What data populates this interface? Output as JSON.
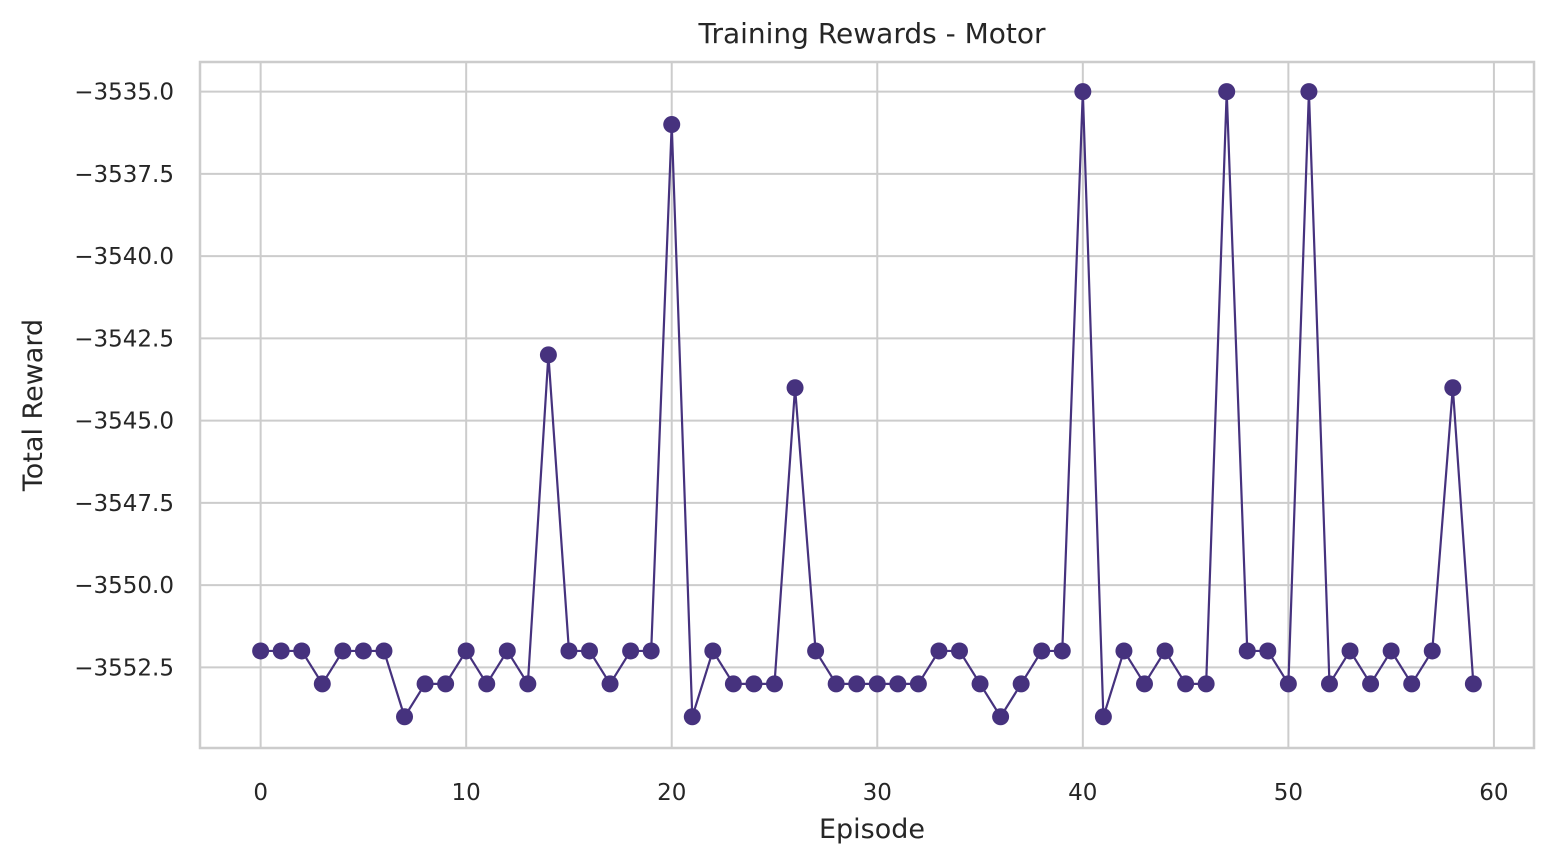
{
  "chart_data": {
    "type": "line",
    "title": "Training Rewards - Motor",
    "xlabel": "Episode",
    "ylabel": "Total Reward",
    "xlim": [
      -2.95,
      61.95
    ],
    "ylim": [
      -3554.95,
      -3534.1
    ],
    "xticks": [
      0,
      10,
      20,
      30,
      40,
      50,
      60
    ],
    "xtick_labels": [
      "0",
      "10",
      "20",
      "30",
      "40",
      "50",
      "60"
    ],
    "yticks": [
      -3552.5,
      -3550.0,
      -3547.5,
      -3545.0,
      -3542.5,
      -3540.0,
      -3537.5,
      -3535.0
    ],
    "ytick_labels": [
      "−3552.5",
      "−3550.0",
      "−3547.5",
      "−3545.0",
      "−3542.5",
      "−3540.0",
      "−3537.5",
      "−3535.0"
    ],
    "grid": true,
    "series": [
      {
        "color": "#46327e",
        "marker": "circle",
        "x": [
          0,
          1,
          2,
          3,
          4,
          5,
          6,
          7,
          8,
          9,
          10,
          11,
          12,
          13,
          14,
          15,
          16,
          17,
          18,
          19,
          20,
          21,
          22,
          23,
          24,
          25,
          26,
          27,
          28,
          29,
          30,
          31,
          32,
          33,
          34,
          35,
          36,
          37,
          38,
          39,
          40,
          41,
          42,
          43,
          44,
          45,
          46,
          47,
          48,
          49,
          50,
          51,
          52,
          53,
          54,
          55,
          56,
          57,
          58,
          59
        ],
        "values": [
          -3552,
          -3552,
          -3552,
          -3553,
          -3552,
          -3552,
          -3552,
          -3554,
          -3553,
          -3553,
          -3552,
          -3553,
          -3552,
          -3553,
          -3543,
          -3552,
          -3552,
          -3553,
          -3552,
          -3552,
          -3536,
          -3554,
          -3552,
          -3553,
          -3553,
          -3553,
          -3544,
          -3552,
          -3553,
          -3553,
          -3553,
          -3553,
          -3553,
          -3552,
          -3552,
          -3553,
          -3554,
          -3553,
          -3552,
          -3552,
          -3535,
          -3554,
          -3552,
          -3553,
          -3552,
          -3553,
          -3553,
          -3535,
          -3552,
          -3552,
          -3553,
          -3535,
          -3553,
          -3552,
          -3553,
          -3552,
          -3553,
          -3552,
          -3544,
          -3553
        ]
      }
    ]
  }
}
